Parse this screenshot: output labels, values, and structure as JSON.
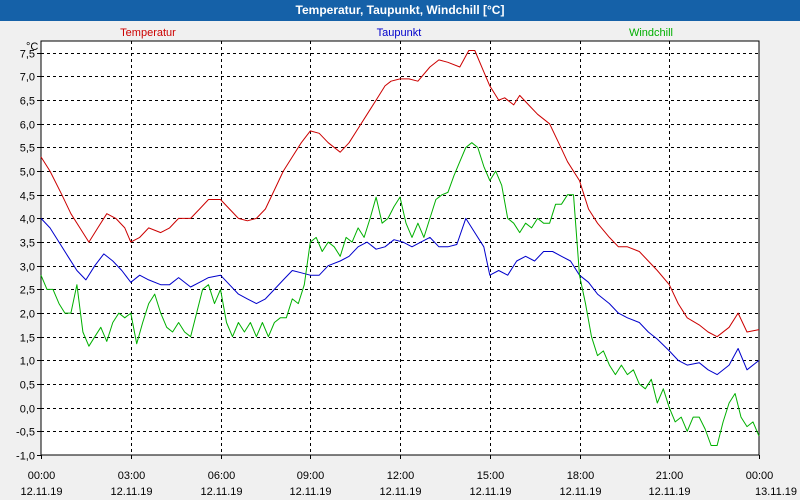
{
  "window": {
    "title": "Temperatur, Taupunkt, Windchill [°C]"
  },
  "colors": {
    "temperatur": "#cc0000",
    "taupunkt": "#0000cc",
    "windchill": "#00b000",
    "title_bar": "#1561a8",
    "grid": "#000000"
  },
  "chart_data": {
    "type": "line",
    "title": "Temperatur, Taupunkt, Windchill [°C]",
    "ylabel": "°C",
    "xlabel": "",
    "ylim": [
      -1.0,
      7.75
    ],
    "xlim": [
      0,
      24
    ],
    "grid": true,
    "y_ticks": [
      -1.0,
      -0.5,
      0.0,
      0.5,
      1.0,
      1.5,
      2.0,
      2.5,
      3.0,
      3.5,
      4.0,
      4.5,
      5.0,
      5.5,
      6.0,
      6.5,
      7.0,
      7.5
    ],
    "y_tick_labels": [
      "-1,0",
      "-0,5",
      "0,0",
      "0,5",
      "1,0",
      "1,5",
      "2,0",
      "2,5",
      "3,0",
      "3,5",
      "4,0",
      "4,5",
      "5,0",
      "5,5",
      "6,0",
      "6,5",
      "7,0",
      "7,5"
    ],
    "x_ticks": [
      {
        "hour": 0,
        "time": "00:00",
        "date": "12.11.19"
      },
      {
        "hour": 3,
        "time": "03:00",
        "date": "12.11.19"
      },
      {
        "hour": 6,
        "time": "06:00",
        "date": "12.11.19"
      },
      {
        "hour": 9,
        "time": "09:00",
        "date": "12.11.19"
      },
      {
        "hour": 12,
        "time": "12:00",
        "date": "12.11.19"
      },
      {
        "hour": 15,
        "time": "15:00",
        "date": "12.11.19"
      },
      {
        "hour": 18,
        "time": "18:00",
        "date": "12.11.19"
      },
      {
        "hour": 21,
        "time": "21:00",
        "date": "12.11.19"
      },
      {
        "hour": 24,
        "time": "00:00",
        "date": "13.11.19"
      }
    ],
    "series": [
      {
        "name": "Temperatur",
        "color": "#cc0000",
        "x": [
          0,
          0.3,
          0.7,
          1.0,
          1.3,
          1.6,
          1.9,
          2.2,
          2.5,
          2.8,
          3.0,
          3.3,
          3.6,
          4.0,
          4.3,
          4.6,
          5.0,
          5.3,
          5.6,
          6.0,
          6.3,
          6.6,
          6.9,
          7.2,
          7.5,
          7.8,
          8.1,
          8.4,
          8.7,
          9.0,
          9.3,
          9.6,
          10.0,
          10.3,
          10.6,
          10.9,
          11.2,
          11.5,
          11.7,
          12.0,
          12.3,
          12.6,
          13.0,
          13.3,
          13.6,
          14.0,
          14.3,
          14.5,
          14.8,
          15.0,
          15.3,
          15.5,
          15.8,
          16.0,
          16.3,
          16.6,
          17.0,
          17.3,
          17.6,
          18.0,
          18.3,
          18.6,
          19.0,
          19.3,
          19.6,
          20.0,
          20.3,
          20.6,
          21.0,
          21.3,
          21.6,
          22.0,
          22.3,
          22.6,
          23.0,
          23.3,
          23.6,
          24.0
        ],
        "y": [
          5.3,
          5.0,
          4.5,
          4.1,
          3.8,
          3.5,
          3.8,
          4.1,
          4.0,
          3.8,
          3.5,
          3.6,
          3.8,
          3.7,
          3.8,
          4.0,
          4.0,
          4.2,
          4.4,
          4.4,
          4.2,
          4.0,
          3.95,
          4.0,
          4.2,
          4.6,
          5.0,
          5.3,
          5.6,
          5.85,
          5.8,
          5.6,
          5.4,
          5.6,
          5.9,
          6.2,
          6.5,
          6.8,
          6.9,
          6.95,
          6.95,
          6.9,
          7.2,
          7.35,
          7.3,
          7.2,
          7.55,
          7.55,
          7.1,
          6.8,
          6.5,
          6.55,
          6.4,
          6.6,
          6.4,
          6.2,
          6.0,
          5.6,
          5.2,
          4.8,
          4.2,
          3.9,
          3.6,
          3.4,
          3.4,
          3.3,
          3.1,
          2.9,
          2.6,
          2.2,
          1.9,
          1.75,
          1.6,
          1.5,
          1.7,
          2.0,
          1.6,
          1.65
        ]
      },
      {
        "name": "Taupunkt",
        "color": "#0000cc",
        "x": [
          0,
          0.3,
          0.6,
          0.9,
          1.2,
          1.5,
          1.8,
          2.1,
          2.4,
          2.7,
          3.0,
          3.3,
          3.6,
          4.0,
          4.3,
          4.6,
          5.0,
          5.3,
          5.6,
          6.0,
          6.3,
          6.6,
          6.9,
          7.2,
          7.5,
          7.8,
          8.1,
          8.4,
          8.7,
          9.0,
          9.3,
          9.6,
          10.0,
          10.3,
          10.6,
          10.9,
          11.2,
          11.5,
          11.8,
          12.1,
          12.4,
          12.7,
          13.0,
          13.3,
          13.6,
          13.9,
          14.2,
          14.5,
          14.8,
          15.0,
          15.3,
          15.6,
          15.9,
          16.2,
          16.5,
          16.8,
          17.1,
          17.4,
          17.7,
          18.0,
          18.3,
          18.6,
          19.0,
          19.3,
          19.6,
          20.0,
          20.3,
          20.6,
          21.0,
          21.3,
          21.6,
          22.0,
          22.3,
          22.6,
          23.0,
          23.3,
          23.6,
          24.0
        ],
        "y": [
          4.0,
          3.8,
          3.5,
          3.2,
          2.9,
          2.7,
          3.0,
          3.25,
          3.1,
          2.9,
          2.65,
          2.8,
          2.7,
          2.6,
          2.6,
          2.75,
          2.55,
          2.65,
          2.75,
          2.8,
          2.6,
          2.4,
          2.3,
          2.2,
          2.3,
          2.5,
          2.7,
          2.9,
          2.85,
          2.8,
          2.8,
          3.0,
          3.1,
          3.2,
          3.4,
          3.5,
          3.35,
          3.4,
          3.55,
          3.5,
          3.4,
          3.5,
          3.6,
          3.4,
          3.4,
          3.45,
          4.0,
          3.7,
          3.4,
          2.8,
          2.9,
          2.8,
          3.1,
          3.2,
          3.1,
          3.3,
          3.3,
          3.2,
          3.1,
          2.8,
          2.65,
          2.4,
          2.2,
          2.0,
          1.9,
          1.8,
          1.6,
          1.45,
          1.2,
          1.0,
          0.9,
          0.95,
          0.8,
          0.7,
          0.9,
          1.25,
          0.8,
          1.0
        ]
      },
      {
        "name": "Windchill",
        "color": "#00b000",
        "x": [
          0,
          0.2,
          0.4,
          0.6,
          0.8,
          1.0,
          1.2,
          1.4,
          1.6,
          1.8,
          2.0,
          2.2,
          2.4,
          2.6,
          2.8,
          3.0,
          3.2,
          3.4,
          3.6,
          3.8,
          4.0,
          4.2,
          4.4,
          4.6,
          4.8,
          5.0,
          5.2,
          5.4,
          5.6,
          5.8,
          6.0,
          6.2,
          6.4,
          6.6,
          6.8,
          7.0,
          7.2,
          7.4,
          7.6,
          7.8,
          8.0,
          8.2,
          8.4,
          8.6,
          8.8,
          9.0,
          9.2,
          9.4,
          9.6,
          9.8,
          10.0,
          10.2,
          10.4,
          10.6,
          10.8,
          11.0,
          11.2,
          11.4,
          11.6,
          11.8,
          12.0,
          12.2,
          12.4,
          12.6,
          12.8,
          13.0,
          13.2,
          13.4,
          13.6,
          13.8,
          14.0,
          14.2,
          14.4,
          14.6,
          14.8,
          15.0,
          15.2,
          15.4,
          15.6,
          15.8,
          16.0,
          16.2,
          16.4,
          16.6,
          16.8,
          17.0,
          17.2,
          17.4,
          17.6,
          17.8,
          18.0,
          18.2,
          18.4,
          18.6,
          18.8,
          19.0,
          19.2,
          19.4,
          19.6,
          19.8,
          20.0,
          20.2,
          20.4,
          20.6,
          20.8,
          21.0,
          21.2,
          21.4,
          21.6,
          21.8,
          22.0,
          22.2,
          22.4,
          22.6,
          22.8,
          23.0,
          23.2,
          23.4,
          23.6,
          23.8,
          24.0
        ],
        "y": [
          2.8,
          2.5,
          2.5,
          2.2,
          2.0,
          2.0,
          2.6,
          1.6,
          1.3,
          1.5,
          1.7,
          1.4,
          1.8,
          2.0,
          1.9,
          2.0,
          1.35,
          1.8,
          2.2,
          2.4,
          2.0,
          1.7,
          1.6,
          1.8,
          1.6,
          1.5,
          2.0,
          2.5,
          2.6,
          2.2,
          2.5,
          1.8,
          1.5,
          1.8,
          1.6,
          1.8,
          1.5,
          1.8,
          1.5,
          1.8,
          1.9,
          1.9,
          2.3,
          2.2,
          2.6,
          3.5,
          3.6,
          3.3,
          3.5,
          3.4,
          3.2,
          3.6,
          3.5,
          3.8,
          3.6,
          4.0,
          4.45,
          3.9,
          4.0,
          4.25,
          4.45,
          3.9,
          3.6,
          3.9,
          3.6,
          4.0,
          4.4,
          4.5,
          4.55,
          4.9,
          5.2,
          5.5,
          5.6,
          5.5,
          5.1,
          4.8,
          5.0,
          4.7,
          4.0,
          3.9,
          3.7,
          3.9,
          3.8,
          4.0,
          3.9,
          3.9,
          4.3,
          4.3,
          4.5,
          4.5,
          2.8,
          2.2,
          1.5,
          1.1,
          1.2,
          0.9,
          0.7,
          0.9,
          0.7,
          0.8,
          0.5,
          0.4,
          0.6,
          0.1,
          0.4,
          0.0,
          -0.3,
          -0.2,
          -0.5,
          -0.2,
          -0.2,
          -0.45,
          -0.8,
          -0.8,
          -0.3,
          0.1,
          0.3,
          -0.2,
          -0.4,
          -0.3,
          -0.6
        ]
      }
    ]
  }
}
